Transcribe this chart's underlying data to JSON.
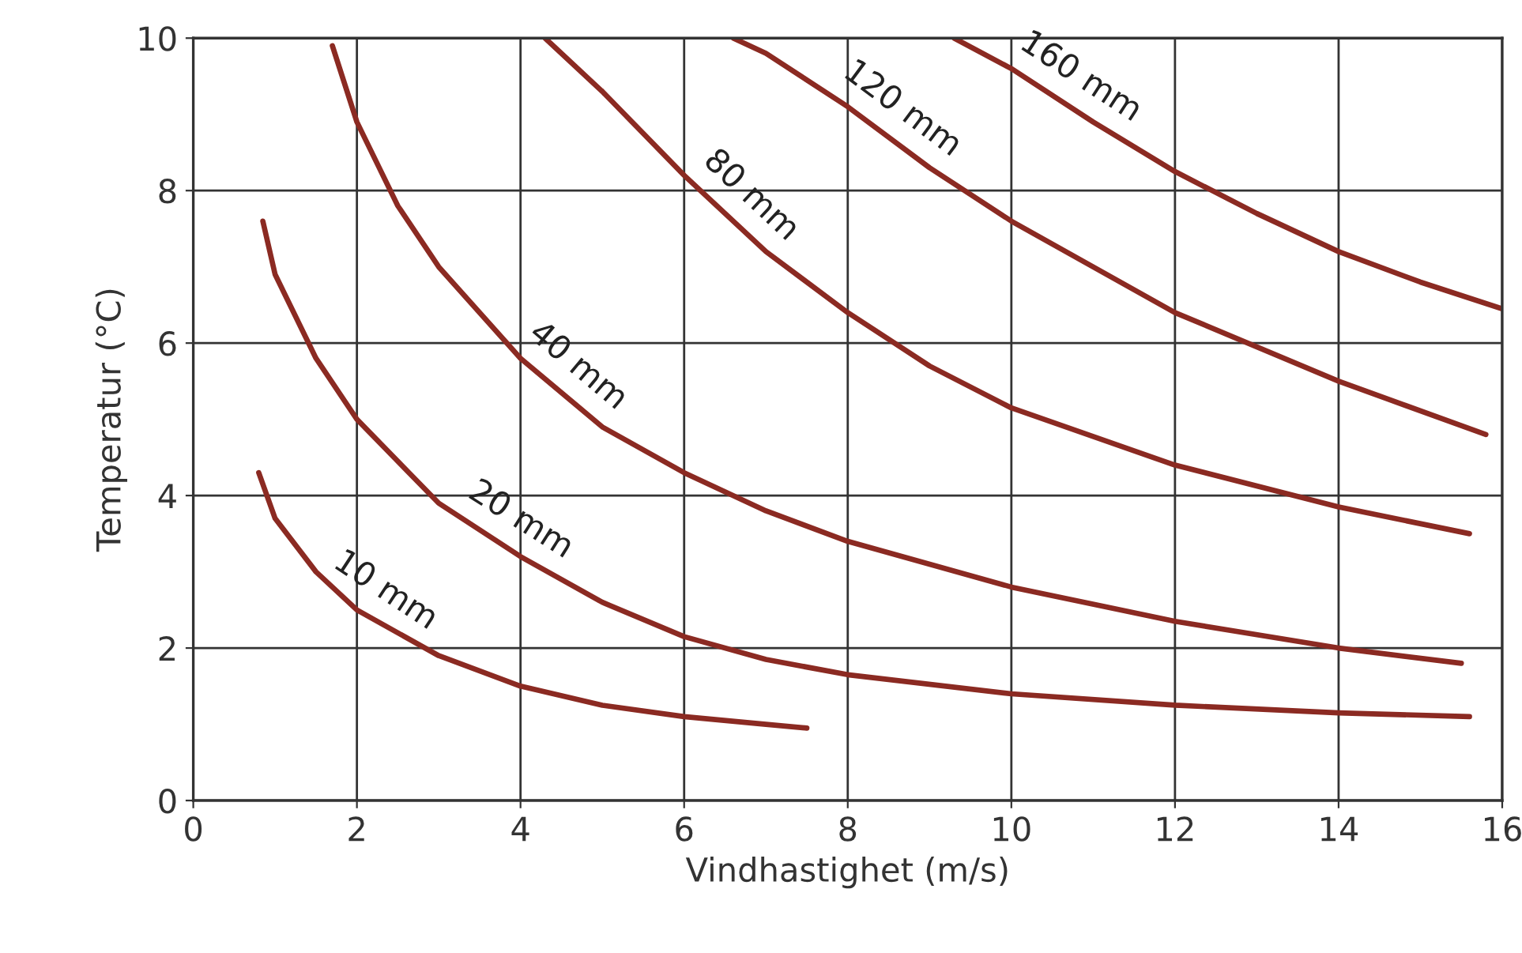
{
  "chart_data": {
    "type": "line",
    "xlabel": "Vindhastighet (m/s)",
    "ylabel": "Temperatur (°C)",
    "xlim": [
      0,
      16
    ],
    "ylim": [
      0,
      10
    ],
    "xticks": [
      0,
      2,
      4,
      6,
      8,
      10,
      12,
      14,
      16
    ],
    "yticks": [
      0,
      2,
      4,
      6,
      8,
      10
    ],
    "grid": true,
    "legend": false,
    "marker": "none",
    "line_style": "solid",
    "series": [
      {
        "name": "10 mm",
        "color": "#8b2a22",
        "x": [
          0.8,
          1,
          1.5,
          2,
          3,
          4,
          5,
          6,
          7,
          7.5
        ],
        "values": [
          4.3,
          3.7,
          3.0,
          2.5,
          1.9,
          1.5,
          1.25,
          1.1,
          1.0,
          0.95
        ]
      },
      {
        "name": "20 mm",
        "color": "#8b2a22",
        "x": [
          0.85,
          1,
          1.5,
          2,
          3,
          4,
          5,
          6,
          7,
          8,
          10,
          12,
          14,
          15.6
        ],
        "values": [
          7.6,
          6.9,
          5.8,
          5.0,
          3.9,
          3.2,
          2.6,
          2.15,
          1.85,
          1.65,
          1.4,
          1.25,
          1.15,
          1.1
        ]
      },
      {
        "name": "40 mm",
        "color": "#8b2a22",
        "x": [
          1.7,
          2,
          2.5,
          3,
          4,
          5,
          6,
          7,
          8,
          10,
          12,
          14,
          15.5
        ],
        "values": [
          9.9,
          8.9,
          7.8,
          7.0,
          5.8,
          4.9,
          4.3,
          3.8,
          3.4,
          2.8,
          2.35,
          2.0,
          1.8
        ]
      },
      {
        "name": "80 mm",
        "color": "#8b2a22",
        "x": [
          4.3,
          5,
          6,
          7,
          8,
          9,
          10,
          12,
          14,
          15.6
        ],
        "values": [
          10,
          9.3,
          8.2,
          7.2,
          6.4,
          5.7,
          5.15,
          4.4,
          3.85,
          3.5
        ]
      },
      {
        "name": "120 mm",
        "color": "#8b2a22",
        "x": [
          6.6,
          7,
          8,
          9,
          10,
          12,
          14,
          15.8
        ],
        "values": [
          10,
          9.8,
          9.1,
          8.3,
          7.6,
          6.4,
          5.5,
          4.8
        ]
      },
      {
        "name": "160 mm",
        "color": "#8b2a22",
        "x": [
          9.3,
          10,
          11,
          12,
          13,
          14,
          15,
          16
        ],
        "values": [
          10,
          9.6,
          8.9,
          8.25,
          7.7,
          7.2,
          6.8,
          6.45
        ]
      }
    ]
  }
}
